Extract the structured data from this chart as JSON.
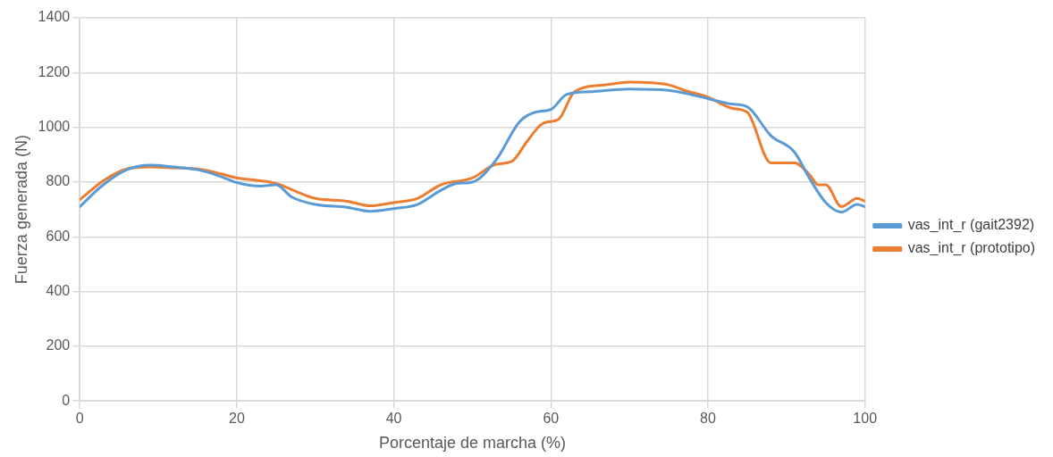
{
  "chart_data": {
    "type": "line",
    "xlabel": "Porcentaje de marcha (%)",
    "ylabel": "Fuerza generada (N)",
    "xlim": [
      0,
      100
    ],
    "xticks": [
      0,
      20,
      40,
      60,
      80,
      100
    ],
    "ylim": [
      0,
      1400
    ],
    "yticks": [
      0,
      200,
      400,
      600,
      800,
      1000,
      1200,
      1400
    ],
    "grid": true,
    "legend": "right",
    "marker": "none",
    "line_style": "solid",
    "series": [
      {
        "name": "vas_int_r (gait2392)",
        "color": "#5b9bd5",
        "x": [
          0,
          3,
          6,
          9,
          12,
          15,
          18,
          20,
          23,
          25,
          27,
          30,
          34,
          37,
          40,
          43,
          46,
          48,
          50,
          53,
          56,
          58,
          60,
          62,
          65,
          70,
          75,
          80,
          83,
          85,
          88,
          91,
          93,
          95,
          97,
          99,
          100
        ],
        "values": [
          710,
          790,
          845,
          862,
          855,
          845,
          820,
          798,
          785,
          790,
          745,
          718,
          708,
          693,
          703,
          718,
          770,
          795,
          800,
          880,
          1020,
          1055,
          1065,
          1120,
          1130,
          1140,
          1135,
          1105,
          1085,
          1075,
          970,
          910,
          810,
          725,
          690,
          718,
          710
        ]
      },
      {
        "name": "vas_int_r (prototipo)",
        "color": "#ed7d31",
        "x": [
          0,
          3,
          6,
          9,
          12,
          15,
          18,
          20,
          23,
          25,
          28,
          30,
          34,
          37,
          40,
          43,
          46,
          50,
          53,
          55,
          57,
          59,
          61,
          63,
          67,
          70,
          75,
          77,
          80,
          83,
          85,
          88,
          91,
          93,
          94,
          95,
          97,
          99,
          100
        ],
        "values": [
          735,
          805,
          848,
          855,
          852,
          848,
          830,
          815,
          805,
          795,
          760,
          740,
          730,
          713,
          725,
          740,
          790,
          815,
          865,
          875,
          950,
          1015,
          1030,
          1130,
          1155,
          1165,
          1155,
          1135,
          1110,
          1070,
          1055,
          870,
          870,
          825,
          790,
          790,
          710,
          740,
          730
        ]
      }
    ]
  }
}
